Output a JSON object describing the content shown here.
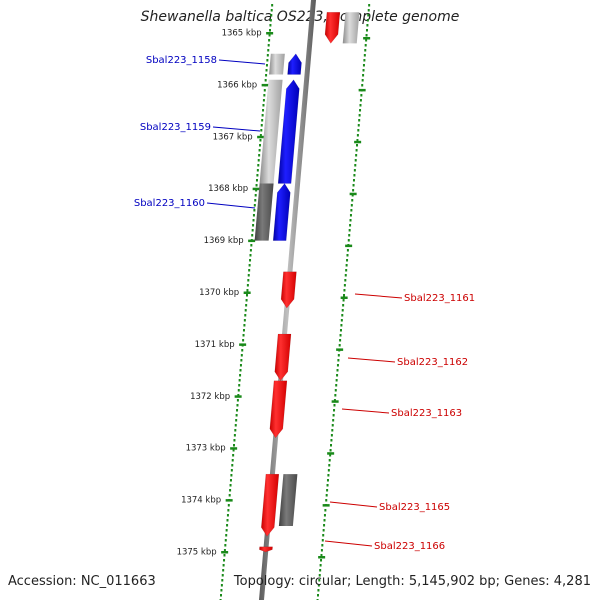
{
  "title": "Shewanella baltica OS223, complete genome",
  "footer": {
    "accession": "Accession: NC_011663",
    "summary": "Topology: circular; Length: 5,145,902 bp; Genes: 4,281"
  },
  "ruler": {
    "ticks": [
      "1365 kbp",
      "1366 kbp",
      "1367 kbp",
      "1368 kbp",
      "1369 kbp",
      "1370 kbp",
      "1371 kbp",
      "1372 kbp",
      "1373 kbp",
      "1374 kbp",
      "1375 kbp"
    ]
  },
  "colors": {
    "forward": "#0000e0",
    "reverse": "#ff0000",
    "grey": "#b8b8b8",
    "dark_grey": "#606060",
    "dots": "#1a8a1a",
    "label_blue": "#0000c0",
    "label_red": "#cc0000"
  },
  "genes": [
    {
      "name": "Sbal223_1158",
      "strand": "forward",
      "start_kbp": 1365.4,
      "end_kbp": 1365.8
    },
    {
      "name": "Sbal223_1159",
      "strand": "forward",
      "start_kbp": 1365.9,
      "end_kbp": 1367.9
    },
    {
      "name": "Sbal223_1160",
      "strand": "forward",
      "start_kbp": 1367.9,
      "end_kbp": 1369.0
    },
    {
      "name": "Sbal223_1161",
      "strand": "reverse",
      "start_kbp": 1369.6,
      "end_kbp": 1370.3
    },
    {
      "name": "Sbal223_1162",
      "strand": "reverse",
      "start_kbp": 1370.8,
      "end_kbp": 1371.7
    },
    {
      "name": "Sbal223_1163",
      "strand": "reverse",
      "start_kbp": 1371.7,
      "end_kbp": 1372.8
    },
    {
      "name": "Sbal223_1165",
      "strand": "reverse",
      "start_kbp": 1373.5,
      "end_kbp": 1374.7
    },
    {
      "name": "Sbal223_1166",
      "strand": "reverse",
      "start_kbp": 1374.9,
      "end_kbp": 1375.0
    }
  ],
  "top_reverse_gene": {
    "strand": "reverse",
    "start_kbp": 1364.6,
    "end_kbp": 1365.2
  }
}
